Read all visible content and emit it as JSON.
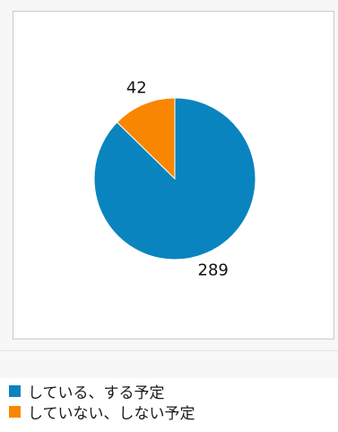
{
  "chart_data": {
    "type": "pie",
    "title": "",
    "series": [
      {
        "name": "",
        "labels": [
          "している、する予定",
          "していない、しない予定"
        ],
        "values": [
          289,
          42
        ],
        "colors": [
          "#0a84be",
          "#f98600"
        ]
      }
    ],
    "legend": "bottom-left",
    "data_labels": [
      "289",
      "42"
    ]
  }
}
